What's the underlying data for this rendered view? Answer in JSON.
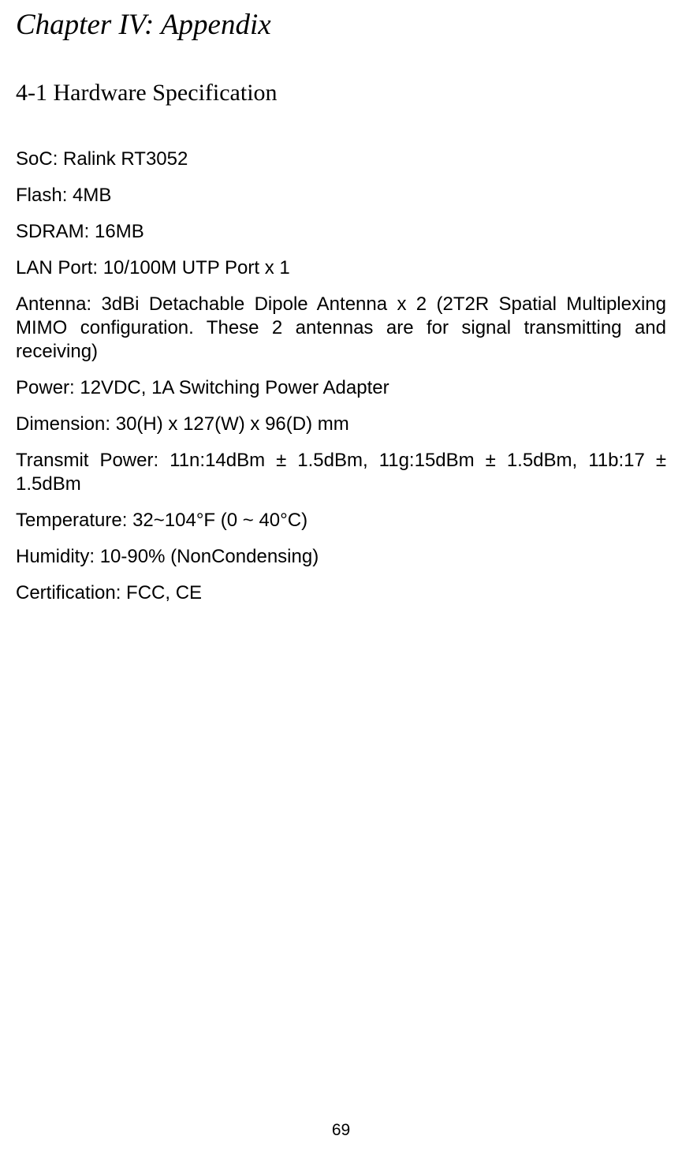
{
  "chapter": {
    "title": "Chapter IV: Appendix",
    "title_font": "Times New Roman Italic",
    "title_fontsize": 37
  },
  "section": {
    "title": "4-1 Hardware Specification",
    "title_font": "Times New Roman",
    "title_fontsize": 30
  },
  "specs": {
    "soc": "SoC: Ralink RT3052",
    "flash": "Flash: 4MB",
    "sdram": "SDRAM: 16MB",
    "lan_port": "LAN Port: 10/100M UTP Port x 1",
    "antenna": "Antenna: 3dBi Detachable Dipole Antenna x 2 (2T2R Spatial Multiplexing MIMO configuration. These 2 antennas are for signal transmitting and receiving)",
    "power": "Power: 12VDC, 1A Switching Power Adapter",
    "dimension": "Dimension: 30(H) x 127(W) x 96(D) mm",
    "transmit_power": "Transmit Power: 11n:14dBm ± 1.5dBm, 11g:15dBm ± 1.5dBm, 11b:17 ± 1.5dBm",
    "temperature": "Temperature: 32~104°F (0 ~ 40°C)",
    "humidity": "Humidity: 10-90% (NonCondensing)",
    "certification": "Certification: FCC, CE"
  },
  "body_font": "Arial",
  "body_fontsize": 24,
  "page_number": "69",
  "colors": {
    "text": "#000000",
    "background": "#ffffff"
  }
}
